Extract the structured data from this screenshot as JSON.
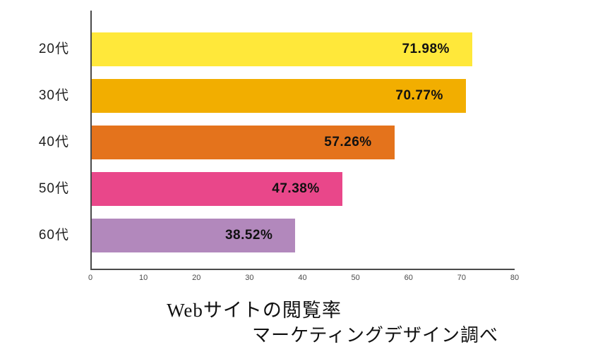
{
  "chart_data": {
    "type": "bar",
    "orientation": "horizontal",
    "title": "Webサイトの閲覧率",
    "source_note": "マーケティングデザイン調べ",
    "categories": [
      "20代",
      "30代",
      "40代",
      "50代",
      "60代"
    ],
    "values": [
      71.98,
      70.77,
      57.26,
      47.38,
      38.52
    ],
    "value_labels": [
      "71.98%",
      "70.77%",
      "57.26%",
      "47.38%",
      "38.52%"
    ],
    "bar_colors": [
      "#ffe83a",
      "#f2ae00",
      "#e4731c",
      "#e9478a",
      "#b288bc"
    ],
    "x_ticks": [
      0,
      10,
      20,
      30,
      40,
      50,
      60,
      70,
      80
    ],
    "xlim": [
      0,
      80
    ],
    "grid": false,
    "legend": "none",
    "axis_color": "#4a4a4a"
  }
}
